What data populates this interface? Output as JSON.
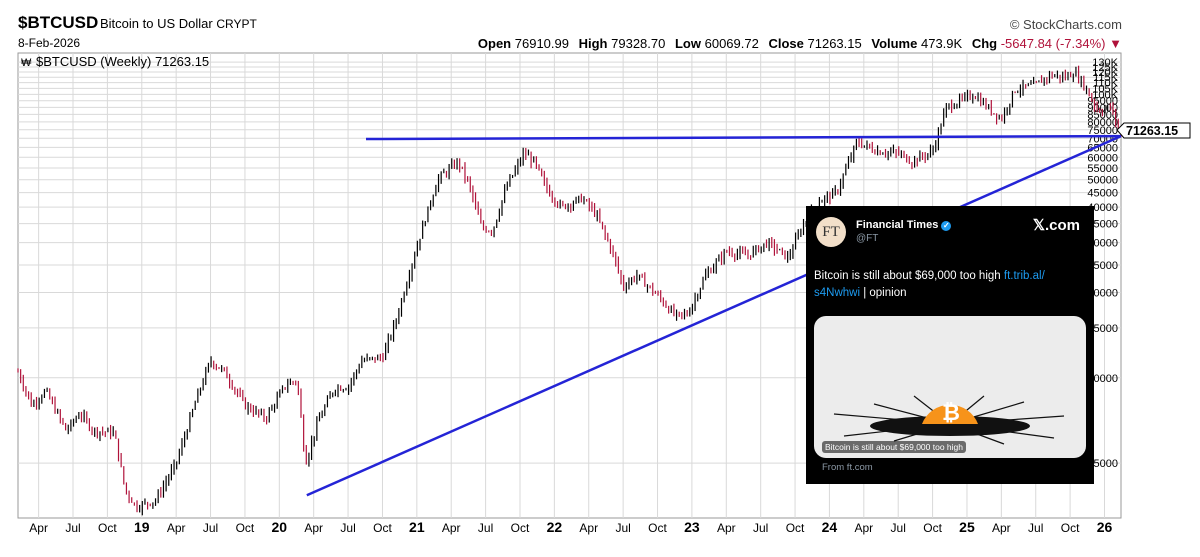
{
  "header": {
    "symbol": "$BTCUSD",
    "name": "Bitcoin to US Dollar",
    "exchange": "CRYPT",
    "date": "8-Feb-2026",
    "credit": "© StockCharts.com",
    "open_label": "Open",
    "open": "76910.99",
    "high_label": "High",
    "high": "79328.70",
    "low_label": "Low",
    "low": "60069.72",
    "close_label": "Close",
    "close": "71263.15",
    "volume_label": "Volume",
    "volume": "473.9K",
    "chg_label": "Chg",
    "chg": "-5647.84 (-7.34%)",
    "chg_marker": "▼"
  },
  "legend": {
    "text": "$BTCUSD (Weekly) 71263.15"
  },
  "colors": {
    "up": "#000000",
    "down": "#b0123a",
    "trendline": "#2424d6",
    "grid": "#d9d9d9",
    "price_box": "#ffffff"
  },
  "chart_data": {
    "type": "line",
    "subtype": "ohlc-bars",
    "scale": "log",
    "ylim": [
      3200,
      140000
    ],
    "x_range": [
      2018.1,
      2026.12
    ],
    "yticks": [
      5000,
      10000,
      15000,
      20000,
      25000,
      30000,
      35000,
      40000,
      45000,
      50000,
      55000,
      60000,
      65000,
      70000,
      75000,
      80000,
      85000,
      90000,
      95000,
      100000,
      105000,
      110000,
      115000,
      120000,
      125000,
      130000
    ],
    "ytick_labels": [
      "5000",
      "10000",
      "15000",
      "20000",
      "25000",
      "30000",
      "35000",
      "40000",
      "45000",
      "50000",
      "55000",
      "60000",
      "65000",
      "70000",
      "75000",
      "80000",
      "85000",
      "90000",
      "95000",
      "100K",
      "105K",
      "110K",
      "115K",
      "120K",
      "125K",
      "130K"
    ],
    "xticks": [
      {
        "label": "Apr",
        "x": 2018.25
      },
      {
        "label": "Jul",
        "x": 2018.5
      },
      {
        "label": "Oct",
        "x": 2018.75
      },
      {
        "label": "19",
        "x": 2019.0
      },
      {
        "label": "Apr",
        "x": 2019.25
      },
      {
        "label": "Jul",
        "x": 2019.5
      },
      {
        "label": "Oct",
        "x": 2019.75
      },
      {
        "label": "20",
        "x": 2020.0
      },
      {
        "label": "Apr",
        "x": 2020.25
      },
      {
        "label": "Jul",
        "x": 2020.5
      },
      {
        "label": "Oct",
        "x": 2020.75
      },
      {
        "label": "21",
        "x": 2021.0
      },
      {
        "label": "Apr",
        "x": 2021.25
      },
      {
        "label": "Jul",
        "x": 2021.5
      },
      {
        "label": "Oct",
        "x": 2021.75
      },
      {
        "label": "22",
        "x": 2022.0
      },
      {
        "label": "Apr",
        "x": 2022.25
      },
      {
        "label": "Jul",
        "x": 2022.5
      },
      {
        "label": "Oct",
        "x": 2022.75
      },
      {
        "label": "23",
        "x": 2023.0
      },
      {
        "label": "Apr",
        "x": 2023.25
      },
      {
        "label": "Jul",
        "x": 2023.5
      },
      {
        "label": "Oct",
        "x": 2023.75
      },
      {
        "label": "24",
        "x": 2024.0
      },
      {
        "label": "Apr",
        "x": 2024.25
      },
      {
        "label": "Jul",
        "x": 2024.5
      },
      {
        "label": "Oct",
        "x": 2024.75
      },
      {
        "label": "25",
        "x": 2025.0
      },
      {
        "label": "Apr",
        "x": 2025.25
      },
      {
        "label": "Jul",
        "x": 2025.5
      },
      {
        "label": "Oct",
        "x": 2025.75
      },
      {
        "label": "26",
        "x": 2026.0
      }
    ],
    "price_points": [
      [
        2018.1,
        10500
      ],
      [
        2018.2,
        8000
      ],
      [
        2018.3,
        9000
      ],
      [
        2018.45,
        6500
      ],
      [
        2018.55,
        7500
      ],
      [
        2018.65,
        6500
      ],
      [
        2018.8,
        6400
      ],
      [
        2018.88,
        4000
      ],
      [
        2018.96,
        3500
      ],
      [
        2019.1,
        3700
      ],
      [
        2019.25,
        5000
      ],
      [
        2019.4,
        8500
      ],
      [
        2019.5,
        11500
      ],
      [
        2019.6,
        10500
      ],
      [
        2019.75,
        8000
      ],
      [
        2019.9,
        7200
      ],
      [
        2020.05,
        9500
      ],
      [
        2020.13,
        9800
      ],
      [
        2020.19,
        5000
      ],
      [
        2020.28,
        7000
      ],
      [
        2020.4,
        9200
      ],
      [
        2020.5,
        9300
      ],
      [
        2020.6,
        11500
      ],
      [
        2020.75,
        11800
      ],
      [
        2020.85,
        16000
      ],
      [
        2020.95,
        24000
      ],
      [
        2021.05,
        35000
      ],
      [
        2021.15,
        50000
      ],
      [
        2021.3,
        58000
      ],
      [
        2021.38,
        48000
      ],
      [
        2021.47,
        34000
      ],
      [
        2021.55,
        33000
      ],
      [
        2021.65,
        47000
      ],
      [
        2021.78,
        62000
      ],
      [
        2021.85,
        58000
      ],
      [
        2021.95,
        46000
      ],
      [
        2022.05,
        40000
      ],
      [
        2022.2,
        43000
      ],
      [
        2022.3,
        38000
      ],
      [
        2022.42,
        28000
      ],
      [
        2022.5,
        21000
      ],
      [
        2022.6,
        23000
      ],
      [
        2022.75,
        19500
      ],
      [
        2022.88,
        16500
      ],
      [
        2022.97,
        16800
      ],
      [
        2023.1,
        23000
      ],
      [
        2023.25,
        28000
      ],
      [
        2023.4,
        27000
      ],
      [
        2023.55,
        30000
      ],
      [
        2023.7,
        26500
      ],
      [
        2023.8,
        34000
      ],
      [
        2023.92,
        42000
      ],
      [
        2024.05,
        45000
      ],
      [
        2024.2,
        68000
      ],
      [
        2024.35,
        63000
      ],
      [
        2024.5,
        62000
      ],
      [
        2024.6,
        58000
      ],
      [
        2024.75,
        63000
      ],
      [
        2024.85,
        90000
      ],
      [
        2024.95,
        95000
      ],
      [
        2025.05,
        100000
      ],
      [
        2025.15,
        90000
      ],
      [
        2025.25,
        82000
      ],
      [
        2025.35,
        104000
      ],
      [
        2025.5,
        108000
      ],
      [
        2025.6,
        117000
      ],
      [
        2025.72,
        115000
      ],
      [
        2025.78,
        120000
      ],
      [
        2025.85,
        108000
      ],
      [
        2025.95,
        88000
      ],
      [
        2026.05,
        90000
      ],
      [
        2026.12,
        71263
      ]
    ],
    "trendlines": [
      {
        "x": [
          2020.2,
          2026.12
        ],
        "y": [
          3850,
          71263
        ]
      },
      {
        "x": [
          2020.62,
          2026.12
        ],
        "y": [
          64000,
          71263
        ]
      }
    ],
    "last_price_label": "71263.15"
  },
  "tweet": {
    "avatar_text": "FT",
    "name": "Financial Times",
    "verified_mark": "✓",
    "handle": "@FT",
    "source": "𝕏.com",
    "text_main": "Bitcoin is still about $69,000 too high ",
    "link1": "ft.trib.al/",
    "link2": "s4Nwhwi",
    "text_tail": " | opinion",
    "card_caption": "Bitcoin is still about $69,000 too high",
    "from_text": "From ft.com"
  }
}
